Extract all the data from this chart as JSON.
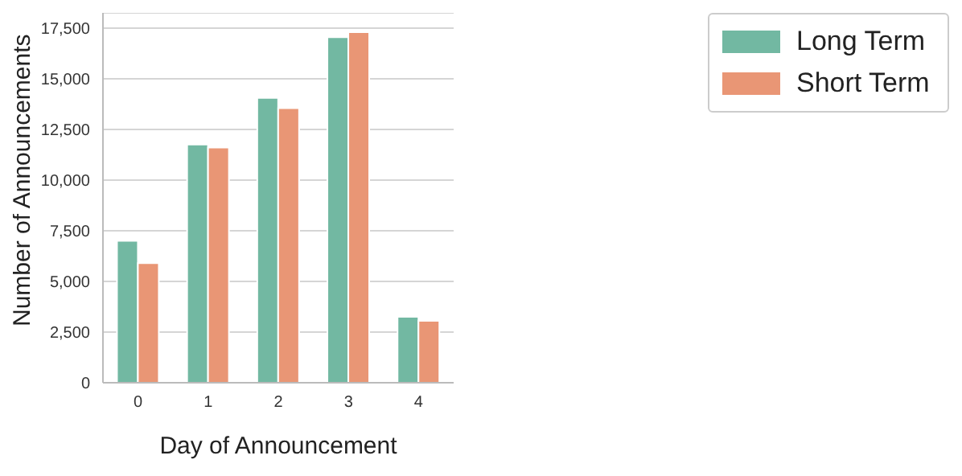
{
  "chart_data": {
    "type": "bar",
    "xlabel": "Day of Announcement",
    "ylabel": "Number of Announcements",
    "categories": [
      "0",
      "1",
      "2",
      "3",
      "4"
    ],
    "series": [
      {
        "name": "Long Term",
        "color": "#72b8a2",
        "values": [
          7000,
          11750,
          14050,
          17050,
          3250
        ]
      },
      {
        "name": "Short Term",
        "color": "#e99675",
        "values": [
          5900,
          11600,
          13550,
          17300,
          3050
        ]
      }
    ],
    "ylim": [
      0,
      18250
    ],
    "yticks": [
      0,
      {
        "value": 2500,
        "label": "2,500"
      },
      {
        "value": 5000,
        "label": "5,000"
      },
      {
        "value": 7500,
        "label": "7,500"
      },
      {
        "value": 10000,
        "label": "10,000"
      },
      {
        "value": 12500,
        "label": "12,500"
      },
      {
        "value": 15000,
        "label": "15,000"
      },
      {
        "value": 17500,
        "label": "17,500"
      }
    ],
    "grid": "y",
    "legend": "top right"
  }
}
